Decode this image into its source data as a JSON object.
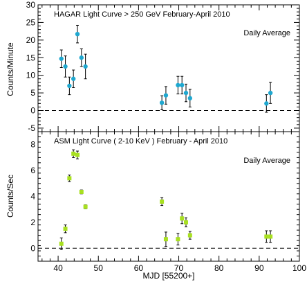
{
  "chart_data": [
    {
      "type": "scatter",
      "title": "HAGAR Light Curve > 250 GeV February-April 2010",
      "annotation": "Daily Average",
      "ylabel": "Counts/Minute",
      "xlim": [
        35,
        100
      ],
      "ylim": [
        -6,
        30
      ],
      "yticks": [
        -5,
        0,
        5,
        10,
        15,
        20,
        25,
        30
      ],
      "reference_line": 0,
      "marker_color": "#1fa8d0",
      "points": [
        {
          "x": 40.8,
          "y": 14.7,
          "err": 2.5
        },
        {
          "x": 41.8,
          "y": 12.5,
          "err": 3.0
        },
        {
          "x": 42.8,
          "y": 7.0,
          "err": 2.5
        },
        {
          "x": 43.8,
          "y": 9.0,
          "err": 2.5
        },
        {
          "x": 44.8,
          "y": 21.7,
          "err": 2.5
        },
        {
          "x": 45.8,
          "y": 15.0,
          "err": 2.5
        },
        {
          "x": 46.8,
          "y": 12.5,
          "err": 3.5
        },
        {
          "x": 65.8,
          "y": 2.2,
          "err": 2.0
        },
        {
          "x": 66.8,
          "y": 4.3,
          "err": 2.5
        },
        {
          "x": 69.8,
          "y": 7.2,
          "err": 2.5
        },
        {
          "x": 70.8,
          "y": 7.2,
          "err": 2.5
        },
        {
          "x": 71.8,
          "y": 5.0,
          "err": 2.5
        },
        {
          "x": 72.8,
          "y": 3.5,
          "err": 2.5
        },
        {
          "x": 91.8,
          "y": 2.0,
          "err": 2.5
        },
        {
          "x": 92.8,
          "y": 5.0,
          "err": 3.0
        }
      ]
    },
    {
      "type": "scatter",
      "title": "ASM Light Curve ( 2-10 KeV ) February - April 2010",
      "annotation": "Daily Average",
      "ylabel": "Counts/Sec",
      "xlabel": "MJD [55200+]",
      "xlim": [
        35,
        100
      ],
      "ylim": [
        -1,
        9
      ],
      "yticks": [
        0,
        2,
        4,
        6,
        8
      ],
      "xticks": [
        40,
        50,
        60,
        70,
        80,
        90,
        100
      ],
      "reference_line": 0,
      "marker_color": "#a8e020",
      "points": [
        {
          "x": 40.8,
          "y": 0.35,
          "err": 0.45
        },
        {
          "x": 41.8,
          "y": 1.5,
          "err": 0.3
        },
        {
          "x": 42.8,
          "y": 5.4,
          "err": 0.25
        },
        {
          "x": 43.8,
          "y": 7.3,
          "err": 0.3
        },
        {
          "x": 44.8,
          "y": 7.2,
          "err": 0.3
        },
        {
          "x": 45.8,
          "y": 4.35,
          "err": 0.15
        },
        {
          "x": 46.8,
          "y": 3.2,
          "err": 0.15
        },
        {
          "x": 65.8,
          "y": 3.6,
          "err": 0.3
        },
        {
          "x": 66.8,
          "y": 0.7,
          "err": 0.55
        },
        {
          "x": 69.8,
          "y": 0.7,
          "err": 0.45
        },
        {
          "x": 70.8,
          "y": 2.3,
          "err": 0.4
        },
        {
          "x": 71.8,
          "y": 2.0,
          "err": 0.35
        },
        {
          "x": 72.8,
          "y": 1.0,
          "err": 0.3
        },
        {
          "x": 91.8,
          "y": 0.9,
          "err": 0.45
        },
        {
          "x": 92.8,
          "y": 0.9,
          "err": 0.45
        }
      ]
    }
  ]
}
